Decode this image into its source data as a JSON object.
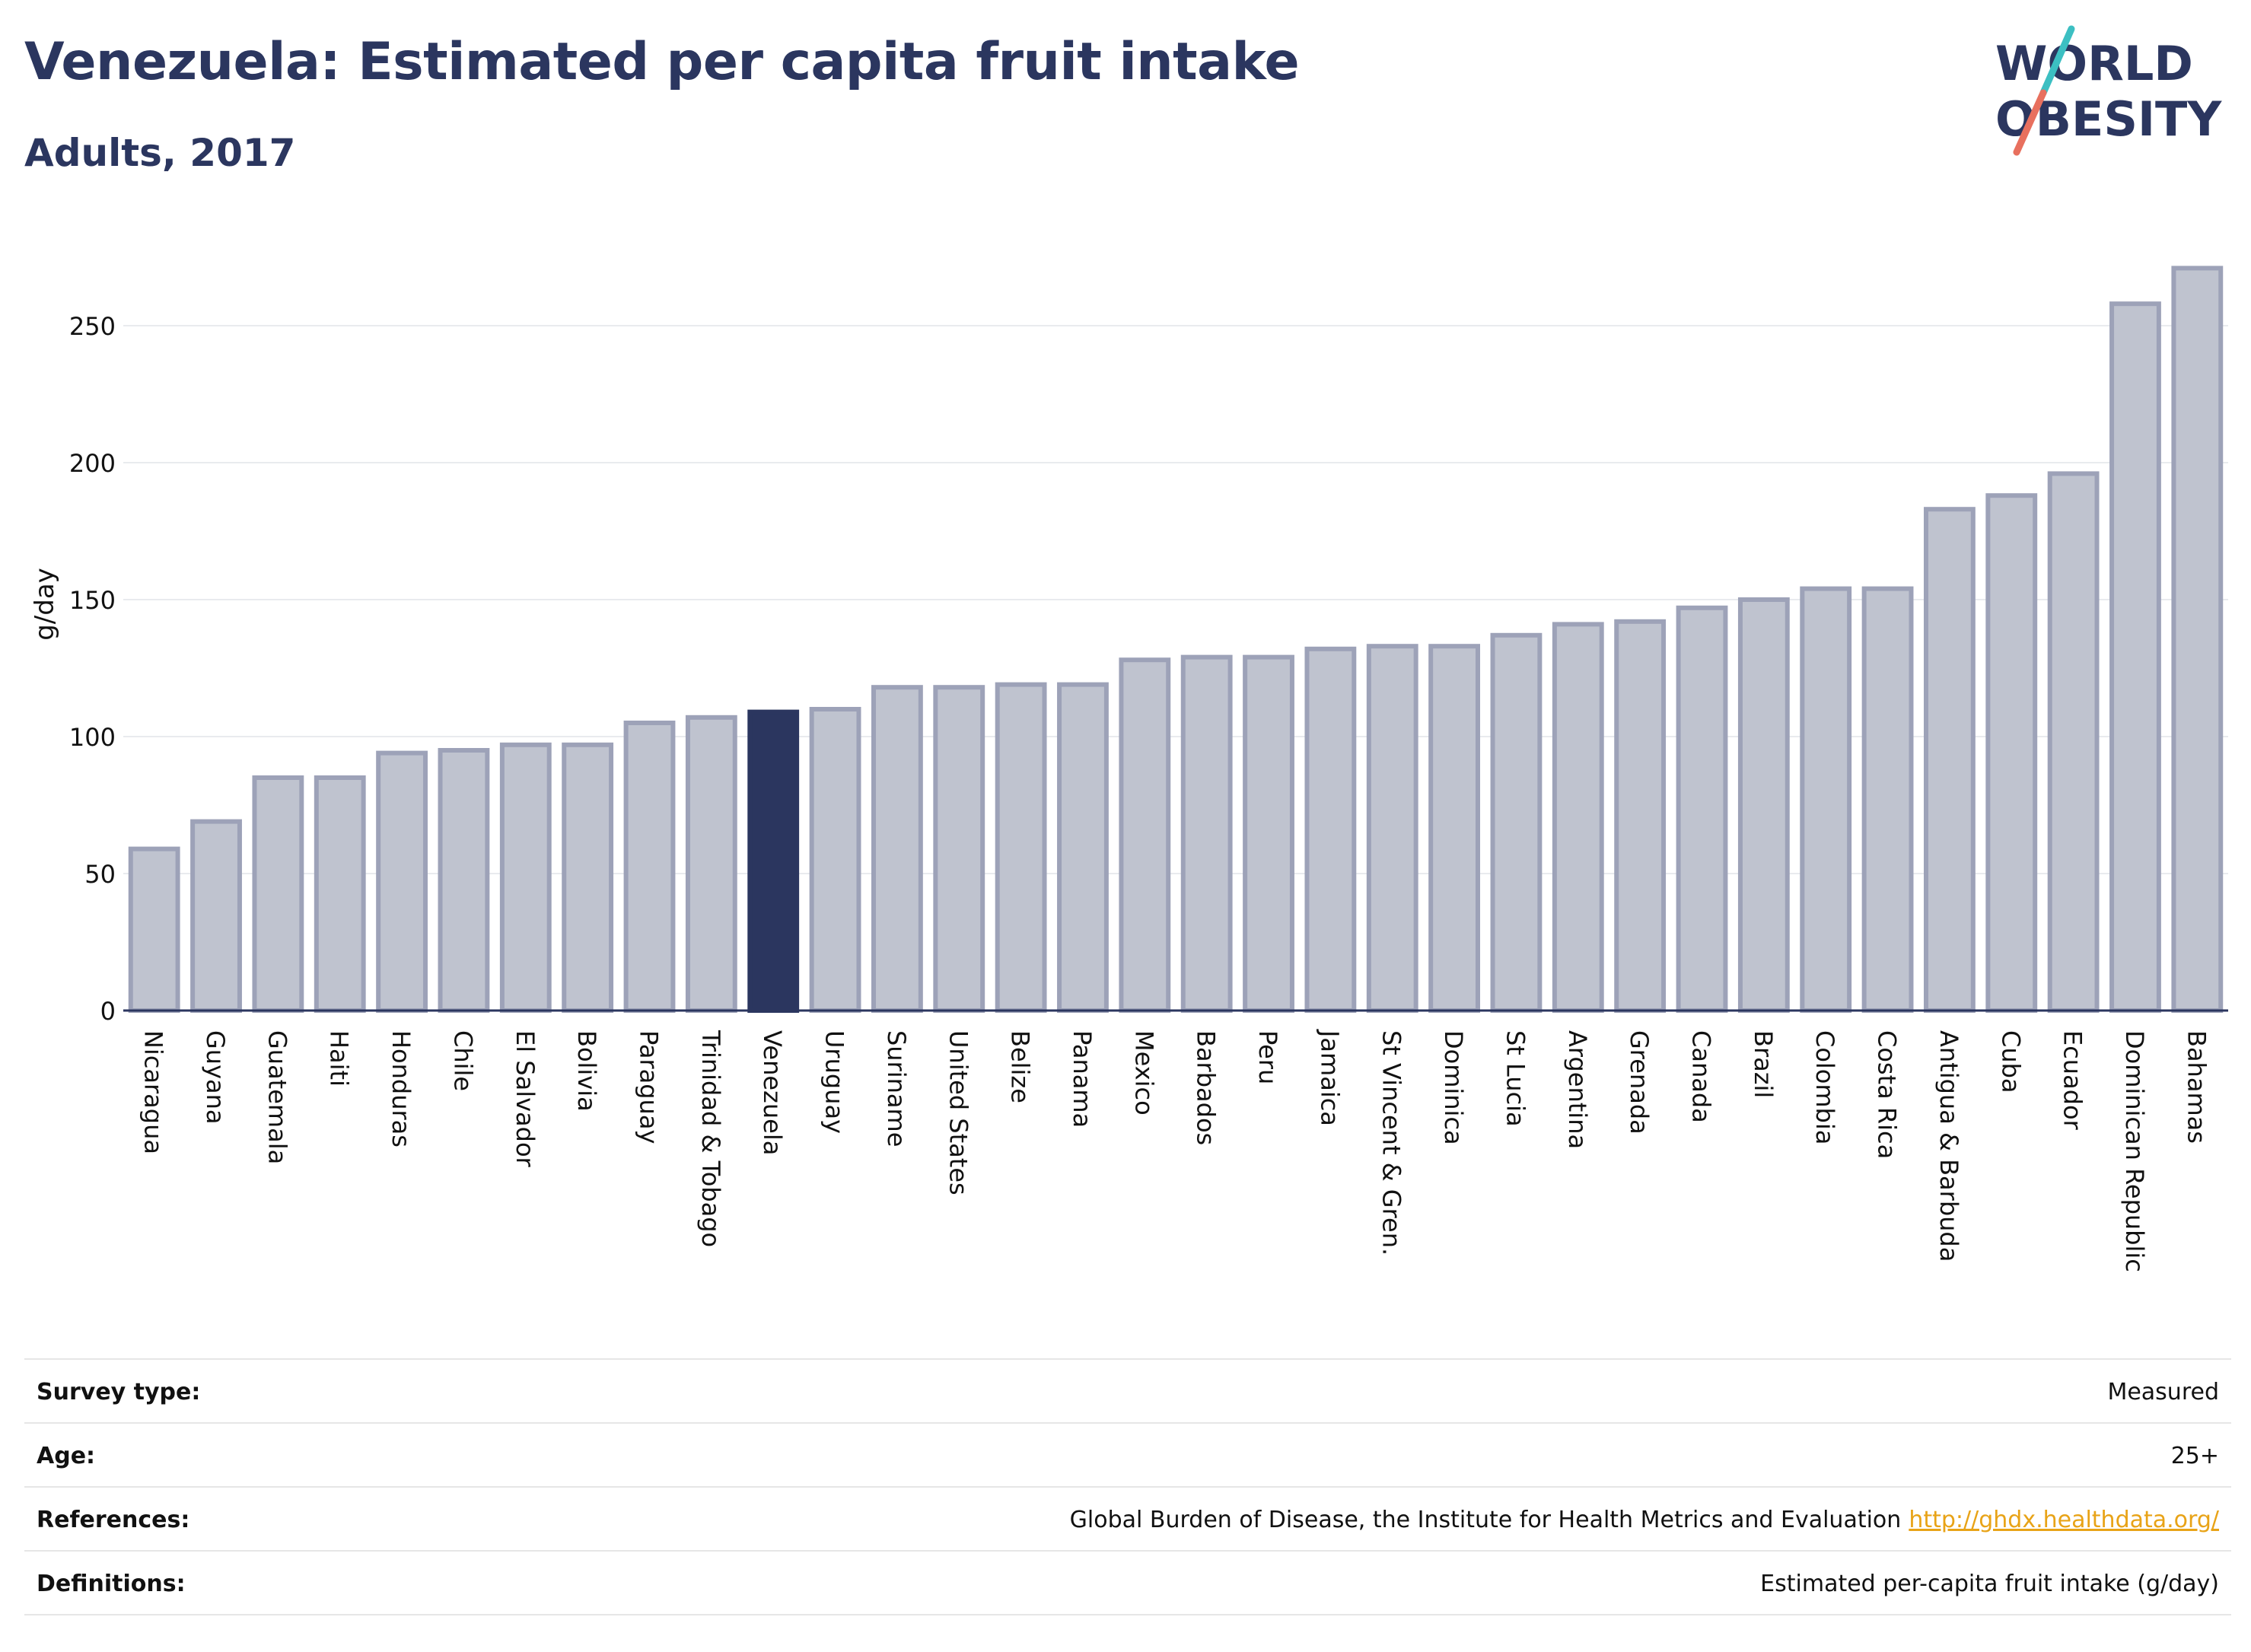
{
  "header": {
    "title": "Venezuela: Estimated per capita fruit intake",
    "subtitle": "Adults, 2017"
  },
  "logo": {
    "line1": "WORLD",
    "line2": "OBESITY"
  },
  "colors": {
    "highlight": "#2b365f",
    "bar_fill": "#bfc3cf",
    "bar_stroke": "#9da2b8",
    "axis": "#2b365f",
    "grid": "#e9ebee",
    "logo_teal": "#3cbfc2",
    "logo_red": "#e8705e",
    "link": "#e8a317"
  },
  "chart_data": {
    "type": "bar",
    "ylabel": "g/day",
    "ylim": [
      0,
      280
    ],
    "yticks": [
      0,
      50,
      100,
      150,
      200,
      250
    ],
    "grid": true,
    "highlight": "Venezuela",
    "categories": [
      "Nicaragua",
      "Guyana",
      "Guatemala",
      "Haiti",
      "Honduras",
      "Chile",
      "El Salvador",
      "Bolivia",
      "Paraguay",
      "Trinidad & Tobago",
      "Venezuela",
      "Uruguay",
      "Suriname",
      "United States",
      "Belize",
      "Panama",
      "Mexico",
      "Barbados",
      "Peru",
      "Jamaica",
      "St Vincent & Gren.",
      "Dominica",
      "St Lucia",
      "Argentina",
      "Grenada",
      "Canada",
      "Brazil",
      "Colombia",
      "Costa Rica",
      "Antigua & Barbuda",
      "Cuba",
      "Ecuador",
      "Dominican Republic",
      "Bahamas"
    ],
    "values": [
      59,
      69,
      85,
      85,
      94,
      95,
      97,
      97,
      105,
      107,
      109,
      110,
      118,
      118,
      119,
      119,
      128,
      129,
      129,
      132,
      133,
      133,
      137,
      141,
      142,
      147,
      150,
      154,
      154,
      183,
      188,
      196,
      258,
      271
    ]
  },
  "meta": [
    {
      "key": "Survey type:",
      "value": "Measured"
    },
    {
      "key": "Age:",
      "value": "25+"
    },
    {
      "key": "References:",
      "value": "Global Burden of Disease, the Institute for Health Metrics and Evaluation",
      "link": "http://ghdx.healthdata.org/"
    },
    {
      "key": "Definitions:",
      "value": "Estimated per-capita fruit intake (g/day)"
    }
  ]
}
